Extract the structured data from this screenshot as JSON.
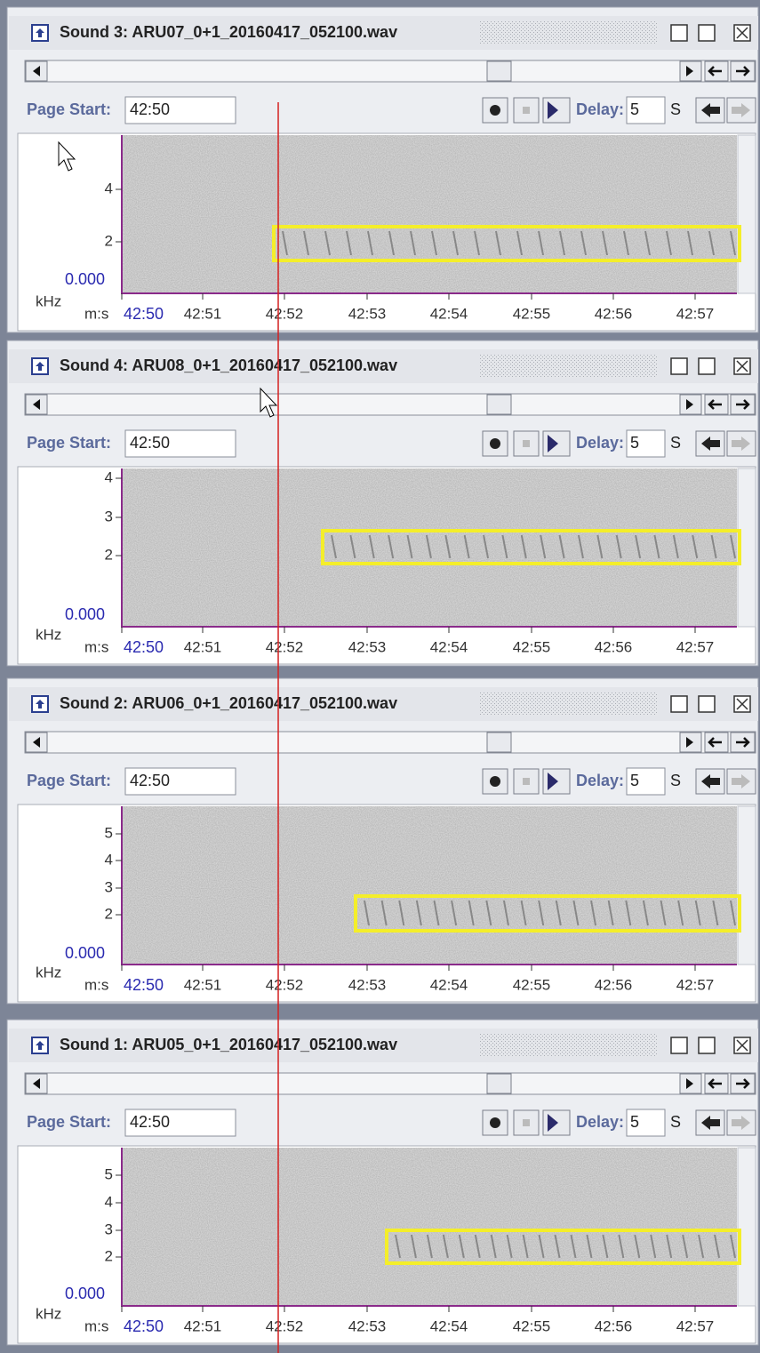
{
  "panels": [
    {
      "title": "Sound 3: ARU07_0+1_20160417_052100.wav",
      "page_start_label": "Page Start:",
      "page_start": "42:50",
      "delay_label": "Delay:",
      "delay": "5",
      "delay_unit": "S",
      "freq_ticks": [
        "4",
        "2"
      ],
      "freq_origin": "0.000",
      "freq_unit": "kHz",
      "time_unit": "m:s",
      "time_ticks": [
        "42:50",
        "42:51",
        "42:52",
        "42:53",
        "42:54",
        "42:55",
        "42:56",
        "42:57"
      ]
    },
    {
      "title": "Sound 4: ARU08_0+1_20160417_052100.wav",
      "page_start_label": "Page Start:",
      "page_start": "42:50",
      "delay_label": "Delay:",
      "delay": "5",
      "delay_unit": "S",
      "freq_ticks": [
        "4",
        "3",
        "2"
      ],
      "freq_origin": "0.000",
      "freq_unit": "kHz",
      "time_unit": "m:s",
      "time_ticks": [
        "42:50",
        "42:51",
        "42:52",
        "42:53",
        "42:54",
        "42:55",
        "42:56",
        "42:57"
      ]
    },
    {
      "title": "Sound 2: ARU06_0+1_20160417_052100.wav",
      "page_start_label": "Page Start:",
      "page_start": "42:50",
      "delay_label": "Delay:",
      "delay": "5",
      "delay_unit": "S",
      "freq_ticks": [
        "5",
        "4",
        "3",
        "2"
      ],
      "freq_origin": "0.000",
      "freq_unit": "kHz",
      "time_unit": "m:s",
      "time_ticks": [
        "42:50",
        "42:51",
        "42:52",
        "42:53",
        "42:54",
        "42:55",
        "42:56",
        "42:57"
      ]
    },
    {
      "title": "Sound 1: ARU05_0+1_20160417_052100.wav",
      "page_start_label": "Page Start:",
      "page_start": "42:50",
      "delay_label": "Delay:",
      "delay": "5",
      "delay_unit": "S",
      "freq_ticks": [
        "5",
        "4",
        "3",
        "2"
      ],
      "freq_origin": "0.000",
      "freq_unit": "kHz",
      "time_unit": "m:s",
      "time_ticks": [
        "42:50",
        "42:51",
        "42:52",
        "42:53",
        "42:54",
        "42:55",
        "42:56",
        "42:57"
      ]
    }
  ]
}
